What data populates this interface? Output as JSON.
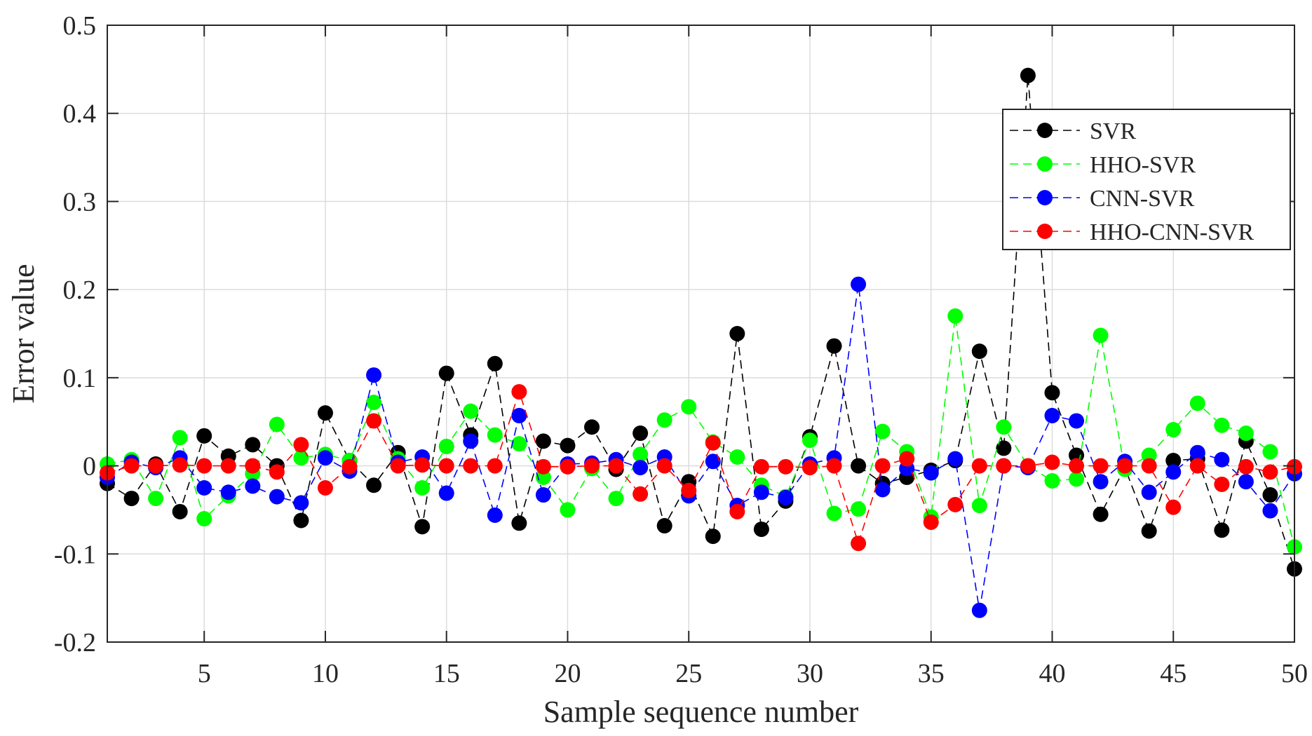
{
  "chart_data": {
    "type": "line",
    "title": "",
    "xlabel": "Sample sequence number",
    "ylabel": "Error value",
    "xlim": [
      1,
      50
    ],
    "ylim": [
      -0.2,
      0.5
    ],
    "x_ticks": [
      5,
      10,
      15,
      20,
      25,
      30,
      35,
      40,
      45,
      50
    ],
    "y_ticks": [
      -0.2,
      -0.1,
      0,
      0.1,
      0.2,
      0.3,
      0.4,
      0.5
    ],
    "y_tick_labels": [
      "-0.2",
      "-0.1",
      "0",
      "0.1",
      "0.2",
      "0.3",
      "0.4",
      "0.5"
    ],
    "grid": true,
    "legend_position": "top-right",
    "x": [
      1,
      2,
      3,
      4,
      5,
      6,
      7,
      8,
      9,
      10,
      11,
      12,
      13,
      14,
      15,
      16,
      17,
      18,
      19,
      20,
      21,
      22,
      23,
      24,
      25,
      26,
      27,
      28,
      29,
      30,
      31,
      32,
      33,
      34,
      35,
      36,
      37,
      38,
      39,
      40,
      41,
      42,
      43,
      44,
      45,
      46,
      47,
      48,
      49,
      50
    ],
    "series": [
      {
        "name": "SVR",
        "color": "#000000",
        "values": [
          -0.02,
          -0.037,
          0.002,
          -0.052,
          0.034,
          0.011,
          0.024,
          0.0,
          -0.062,
          0.06,
          0.006,
          -0.022,
          0.015,
          -0.069,
          0.105,
          0.035,
          0.116,
          -0.065,
          0.028,
          0.023,
          0.044,
          -0.004,
          0.037,
          -0.068,
          -0.018,
          -0.08,
          0.15,
          -0.072,
          -0.04,
          0.033,
          0.136,
          0.0,
          -0.02,
          -0.013,
          -0.005,
          0.006,
          0.13,
          0.02,
          0.443,
          0.083,
          0.012,
          -0.055,
          -0.002,
          -0.074,
          0.006,
          0.008,
          -0.073,
          0.028,
          -0.033,
          -0.117
        ]
      },
      {
        "name": "HHO-SVR",
        "color": "#00ff00",
        "values": [
          0.002,
          0.007,
          -0.037,
          0.032,
          -0.06,
          -0.034,
          -0.009,
          0.047,
          0.009,
          0.013,
          0.006,
          0.072,
          0.008,
          -0.025,
          0.022,
          0.062,
          0.035,
          0.025,
          -0.013,
          -0.05,
          -0.003,
          -0.037,
          0.013,
          0.052,
          0.067,
          0.027,
          0.01,
          -0.022,
          -0.035,
          0.029,
          -0.054,
          -0.049,
          0.039,
          0.016,
          -0.058,
          0.17,
          -0.045,
          0.044,
          0.0,
          -0.017,
          -0.015,
          0.148,
          -0.004,
          0.012,
          0.041,
          0.071,
          0.046,
          0.037,
          0.016,
          -0.092
        ]
      },
      {
        "name": "CNN-SVR",
        "color": "#0000ff",
        "values": [
          -0.013,
          0.004,
          -0.002,
          0.009,
          -0.025,
          -0.03,
          -0.023,
          -0.035,
          -0.042,
          0.009,
          -0.006,
          0.103,
          0.004,
          0.01,
          -0.031,
          0.028,
          -0.056,
          0.057,
          -0.033,
          0.002,
          0.003,
          0.007,
          -0.002,
          0.01,
          -0.034,
          0.005,
          -0.045,
          -0.03,
          -0.036,
          0.002,
          0.009,
          0.206,
          -0.027,
          -0.003,
          -0.008,
          0.008,
          -0.164,
          0.0,
          -0.002,
          0.057,
          0.051,
          -0.018,
          0.005,
          -0.03,
          -0.007,
          0.015,
          0.007,
          -0.018,
          -0.051,
          -0.009
        ]
      },
      {
        "name": "HHO-CNN-SVR",
        "color": "#ff0000",
        "values": [
          -0.008,
          0.0,
          0.0,
          0.001,
          0.0,
          0.0,
          0.0,
          -0.007,
          0.024,
          -0.025,
          -0.001,
          0.051,
          0.0,
          0.001,
          0.0,
          0.0,
          0.0,
          0.084,
          -0.001,
          -0.001,
          0.0,
          0.0,
          -0.032,
          0.0,
          -0.028,
          0.026,
          -0.052,
          -0.001,
          -0.001,
          -0.002,
          0.0,
          -0.088,
          0.0,
          0.008,
          -0.064,
          -0.044,
          0.0,
          0.0,
          0.0,
          0.004,
          0.0,
          0.0,
          0.0,
          0.0,
          -0.047,
          0.0,
          -0.021,
          -0.001,
          -0.007,
          -0.001
        ]
      }
    ]
  }
}
